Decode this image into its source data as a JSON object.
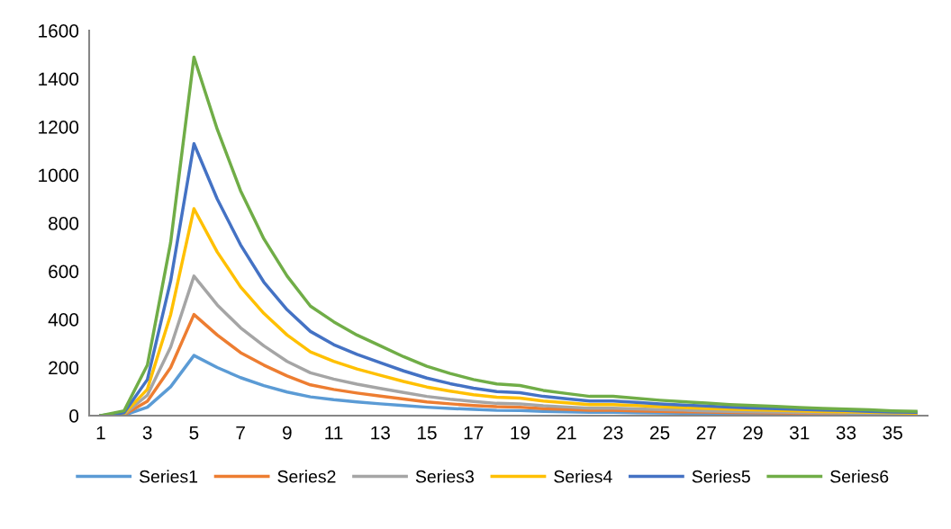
{
  "chart_data": {
    "type": "line",
    "categories": [
      "1",
      null,
      "3",
      null,
      "5",
      null,
      "7",
      null,
      "9",
      null,
      "11",
      null,
      "13",
      null,
      "15",
      null,
      "17",
      null,
      "19",
      null,
      "21",
      null,
      "23",
      null,
      "25",
      null,
      "27",
      null,
      "29",
      null,
      "31",
      null,
      "33",
      null,
      "35",
      null
    ],
    "series": [
      {
        "name": "Series1",
        "color": "#5b9bd5",
        "values": [
          0,
          2,
          35,
          120,
          250,
          200,
          158,
          125,
          98,
          78,
          66,
          57,
          49,
          42,
          35,
          30,
          26,
          22,
          21,
          18,
          16,
          14,
          14,
          12,
          11,
          10,
          9,
          8,
          7,
          6,
          6,
          5,
          5,
          4,
          3,
          3
        ]
      },
      {
        "name": "Series2",
        "color": "#ed7d31",
        "values": [
          0,
          4,
          60,
          200,
          420,
          335,
          262,
          210,
          165,
          128,
          109,
          94,
          81,
          69,
          57,
          49,
          42,
          37,
          35,
          29,
          26,
          22,
          22,
          20,
          18,
          16,
          15,
          13,
          12,
          11,
          10,
          8,
          8,
          null,
          null,
          null
        ]
      },
      {
        "name": "Series3",
        "color": "#a5a5a5",
        "values": [
          0,
          6,
          85,
          285,
          580,
          460,
          365,
          290,
          225,
          178,
          152,
          131,
          113,
          96,
          80,
          68,
          59,
          51,
          49,
          41,
          36,
          31,
          31,
          28,
          25,
          23,
          20,
          18,
          16,
          15,
          13,
          12,
          11,
          10,
          9,
          8
        ]
      },
      {
        "name": "Series4",
        "color": "#ffc000",
        "values": [
          0,
          8,
          110,
          420,
          860,
          680,
          535,
          425,
          335,
          265,
          226,
          194,
          168,
          142,
          119,
          102,
          87,
          77,
          73,
          61,
          53,
          46,
          46,
          42,
          37,
          34,
          30,
          27,
          24,
          22,
          20,
          17,
          16,
          14,
          12,
          10
        ]
      },
      {
        "name": "Series5",
        "color": "#4472c4",
        "values": [
          0,
          12,
          150,
          560,
          1130,
          900,
          710,
          555,
          440,
          350,
          295,
          255,
          220,
          186,
          156,
          133,
          114,
          100,
          95,
          80,
          70,
          61,
          61,
          55,
          49,
          44,
          40,
          35,
          32,
          29,
          26,
          23,
          21,
          18,
          15,
          14
        ]
      },
      {
        "name": "Series6",
        "color": "#70ad47",
        "values": [
          0,
          20,
          210,
          720,
          1490,
          1190,
          935,
          735,
          580,
          455,
          390,
          335,
          290,
          245,
          205,
          175,
          150,
          132,
          125,
          105,
          92,
          80,
          80,
          72,
          64,
          58,
          52,
          46,
          42,
          38,
          34,
          30,
          27,
          24,
          20,
          18
        ]
      }
    ],
    "ylim": [
      0,
      1600
    ],
    "yticks": [
      0,
      200,
      400,
      600,
      800,
      1000,
      1200,
      1400,
      1600
    ],
    "grid": false,
    "legend": "bottom",
    "marker": "none",
    "line_style": "solid"
  }
}
